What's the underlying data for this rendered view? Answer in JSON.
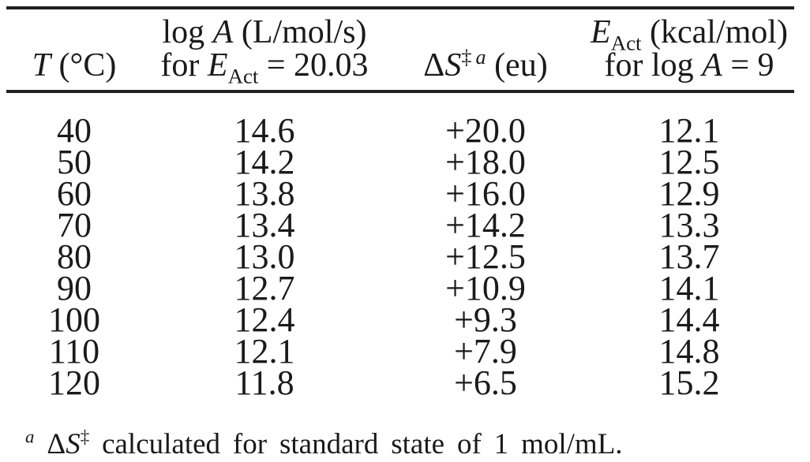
{
  "colors": {
    "text": "#1a1a1a",
    "rule": "#222222",
    "background": "#ffffff"
  },
  "table": {
    "columns": [
      {
        "key": "temperature",
        "header_lines": [
          [
            {
              "t": "T",
              "i": 1
            },
            {
              "t": " (°C)"
            }
          ]
        ]
      },
      {
        "key": "log_a",
        "header_lines": [
          [
            {
              "t": "log "
            },
            {
              "t": "A",
              "i": 1
            },
            {
              "t": " (L/mol/s)"
            }
          ],
          [
            {
              "t": "for "
            },
            {
              "t": "E",
              "i": 1
            },
            {
              "t": "Act",
              "sb": 1
            },
            {
              "t": " = 20.03"
            }
          ]
        ]
      },
      {
        "key": "delta_s",
        "header_lines": [
          [
            {
              "t": "Δ"
            },
            {
              "t": "S",
              "i": 1
            },
            {
              "t": "‡",
              "sp": 1
            },
            {
              "t": " ",
              "sp": 1
            },
            {
              "t": "a",
              "sp": 1,
              "i": 1
            },
            {
              "t": " (eu)"
            }
          ]
        ]
      },
      {
        "key": "e_act",
        "header_lines": [
          [
            {
              "t": "E",
              "i": 1
            },
            {
              "t": "Act",
              "sb": 1
            },
            {
              "t": " (kcal/mol)"
            }
          ],
          [
            {
              "t": "for log "
            },
            {
              "t": "A",
              "i": 1
            },
            {
              "t": " = 9"
            }
          ]
        ]
      }
    ],
    "rows": [
      [
        "40",
        "14.6",
        "+20.0",
        "12.1"
      ],
      [
        "50",
        "14.2",
        "+18.0",
        "12.5"
      ],
      [
        "60",
        "13.8",
        "+16.0",
        "12.9"
      ],
      [
        "70",
        "13.4",
        "+14.2",
        "13.3"
      ],
      [
        "80",
        "13.0",
        "+12.5",
        "13.7"
      ],
      [
        "90",
        "12.7",
        "+10.9",
        "14.1"
      ],
      [
        "100",
        "12.4",
        "+9.3",
        "14.4"
      ],
      [
        "110",
        "12.1",
        "+7.9",
        "14.8"
      ],
      [
        "120",
        "11.8",
        "+6.5",
        "15.2"
      ]
    ]
  },
  "footnote": {
    "segments": [
      {
        "t": "a",
        "sp": 1,
        "i": 1
      },
      {
        "t": " Δ"
      },
      {
        "t": "S",
        "i": 1
      },
      {
        "t": "‡",
        "sp": 1
      },
      {
        "t": " calculated for standard state of 1 mol/mL."
      }
    ]
  },
  "chart_data": {
    "type": "table",
    "title": "",
    "columns": [
      "T (°C)",
      "log A (L/mol/s) for EAct = 20.03",
      "ΔS‡ a (eu)",
      "EAct (kcal/mol) for log A = 9"
    ],
    "rows": [
      [
        40,
        14.6,
        20.0,
        12.1
      ],
      [
        50,
        14.2,
        18.0,
        12.5
      ],
      [
        60,
        13.8,
        16.0,
        12.9
      ],
      [
        70,
        13.4,
        14.2,
        13.3
      ],
      [
        80,
        13.0,
        12.5,
        13.7
      ],
      [
        90,
        12.7,
        10.9,
        14.1
      ],
      [
        100,
        12.4,
        9.3,
        14.4
      ],
      [
        110,
        12.1,
        7.9,
        14.8
      ],
      [
        120,
        11.8,
        6.5,
        15.2
      ]
    ],
    "footnote": "a ΔS‡ calculated for standard state of 1 mol/mL."
  }
}
